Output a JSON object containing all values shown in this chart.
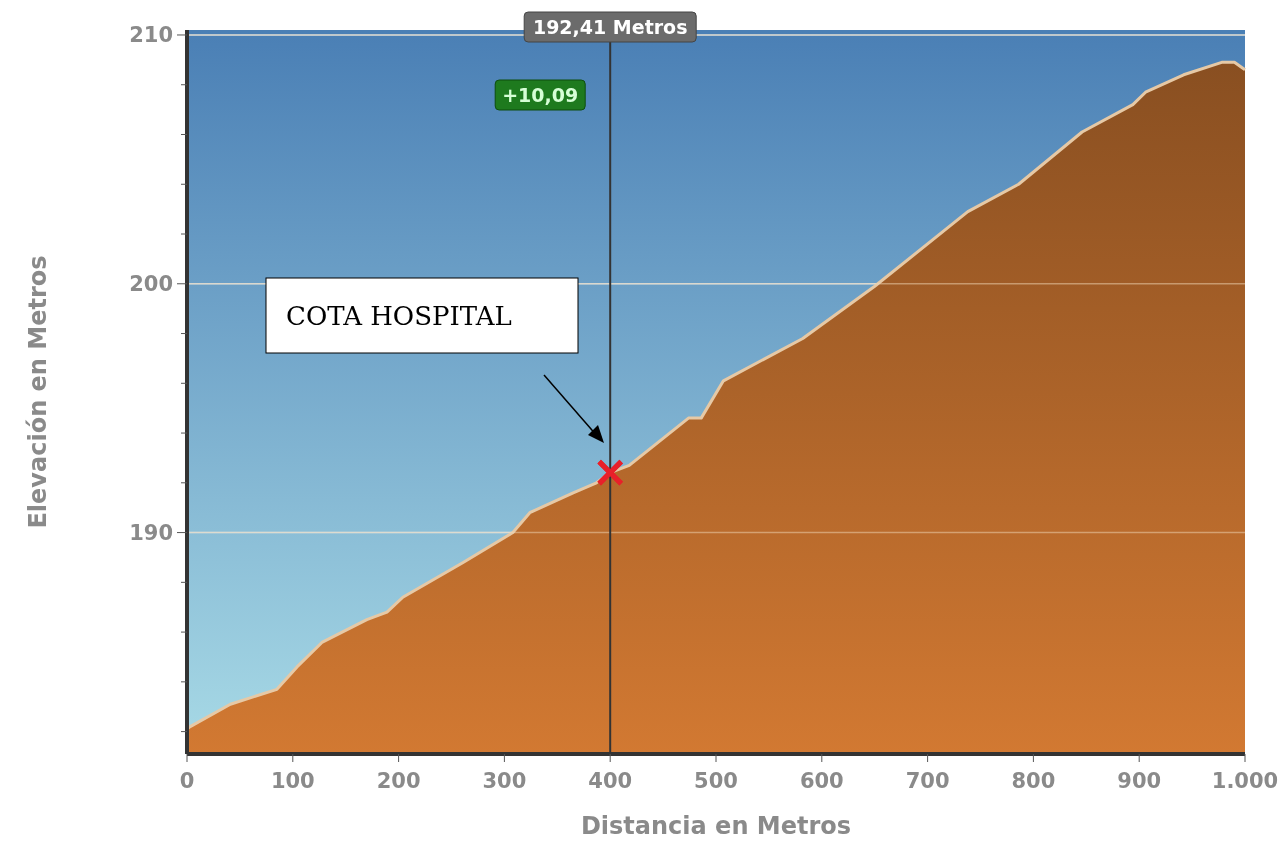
{
  "chart_data": {
    "type": "area",
    "xlabel": "Distancia en Metros",
    "ylabel": "Elevación en Metros",
    "xlim": [
      0,
      1000
    ],
    "xticks": [
      0,
      100,
      200,
      300,
      400,
      500,
      600,
      700,
      800,
      900,
      {
        "value": 1000,
        "label": "1.000"
      }
    ],
    "ylim": [
      181.1,
      210.2
    ],
    "yticks": [
      {
        "value": 182,
        "label": null
      },
      {
        "value": 184,
        "label": null
      },
      {
        "value": 186,
        "label": null
      },
      {
        "value": 188,
        "label": null
      },
      190,
      {
        "value": 192,
        "label": null
      },
      {
        "value": 194,
        "label": null
      },
      {
        "value": 196,
        "label": null
      },
      {
        "value": 198,
        "label": null
      },
      200,
      {
        "value": 202,
        "label": null
      },
      {
        "value": 204,
        "label": null
      },
      {
        "value": 206,
        "label": null
      },
      {
        "value": 208,
        "label": null
      },
      210
    ],
    "grid": "y",
    "series": [
      {
        "color": "#b0652a",
        "x": [
          0,
          3,
          41,
          85,
          104,
          128,
          170,
          189,
          204,
          261,
          308,
          324,
          365,
          387,
          400,
          418,
          474,
          486,
          507,
          582,
          650,
          738,
          786,
          846,
          894,
          906,
          942,
          978,
          990,
          1000
        ],
        "values": [
          182.1,
          182.2,
          183.1,
          183.7,
          184.6,
          185.6,
          186.5,
          186.8,
          187.4,
          188.8,
          190,
          190.8,
          191.6,
          192,
          192.41,
          192.7,
          194.6,
          194.6,
          196.1,
          197.8,
          199.9,
          202.9,
          204,
          206.1,
          207.2,
          207.7,
          208.4,
          208.9,
          208.9,
          208.6
        ]
      },
      {
        "type": "scatter",
        "color": "#e8202a",
        "marker": "cross",
        "x": [
          400
        ],
        "values": [
          192.41
        ]
      }
    ],
    "ref_lines": [
      {
        "axis": "x",
        "value": 400,
        "label": "192,41 Metros",
        "color": "#333333"
      }
    ],
    "annotations": [
      "+10,09",
      "COTA HOSPITAL"
    ]
  }
}
